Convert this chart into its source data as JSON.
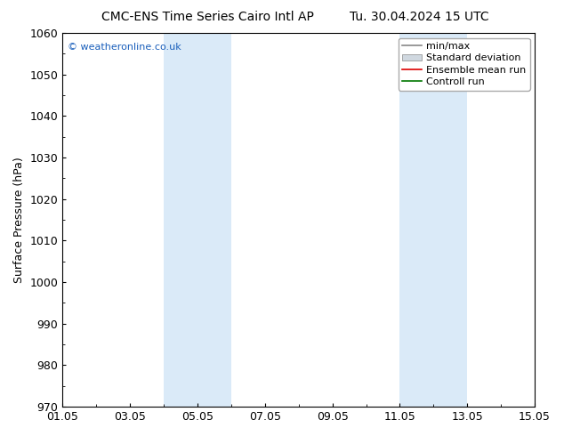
{
  "title_left": "CMC-ENS Time Series Cairo Intl AP",
  "title_right": "Tu. 30.04.2024 15 UTC",
  "ylabel": "Surface Pressure (hPa)",
  "ylim": [
    970,
    1060
  ],
  "yticks": [
    970,
    980,
    990,
    1000,
    1010,
    1020,
    1030,
    1040,
    1050,
    1060
  ],
  "xlim_start": 0,
  "xlim_end": 14,
  "xtick_positions": [
    0,
    2,
    4,
    6,
    8,
    10,
    12,
    14
  ],
  "xtick_labels": [
    "01.05",
    "03.05",
    "05.05",
    "07.05",
    "09.05",
    "11.05",
    "13.05",
    "15.05"
  ],
  "shaded_bands": [
    {
      "xmin": 3.0,
      "xmax": 5.0
    },
    {
      "xmin": 10.0,
      "xmax": 12.0
    }
  ],
  "band_color": "#daeaf8",
  "watermark": "© weatheronline.co.uk",
  "watermark_color": "#1a5fbb",
  "legend_labels": [
    "min/max",
    "Standard deviation",
    "Ensemble mean run",
    "Controll run"
  ],
  "legend_colors_line": [
    "#888888",
    "#bbbbbb",
    "#dd0000",
    "#007700"
  ],
  "background_color": "#ffffff",
  "plot_bg_color": "#ffffff",
  "spine_color": "#000000",
  "title_fontsize": 10,
  "axis_label_fontsize": 9,
  "tick_fontsize": 9,
  "legend_fontsize": 8
}
